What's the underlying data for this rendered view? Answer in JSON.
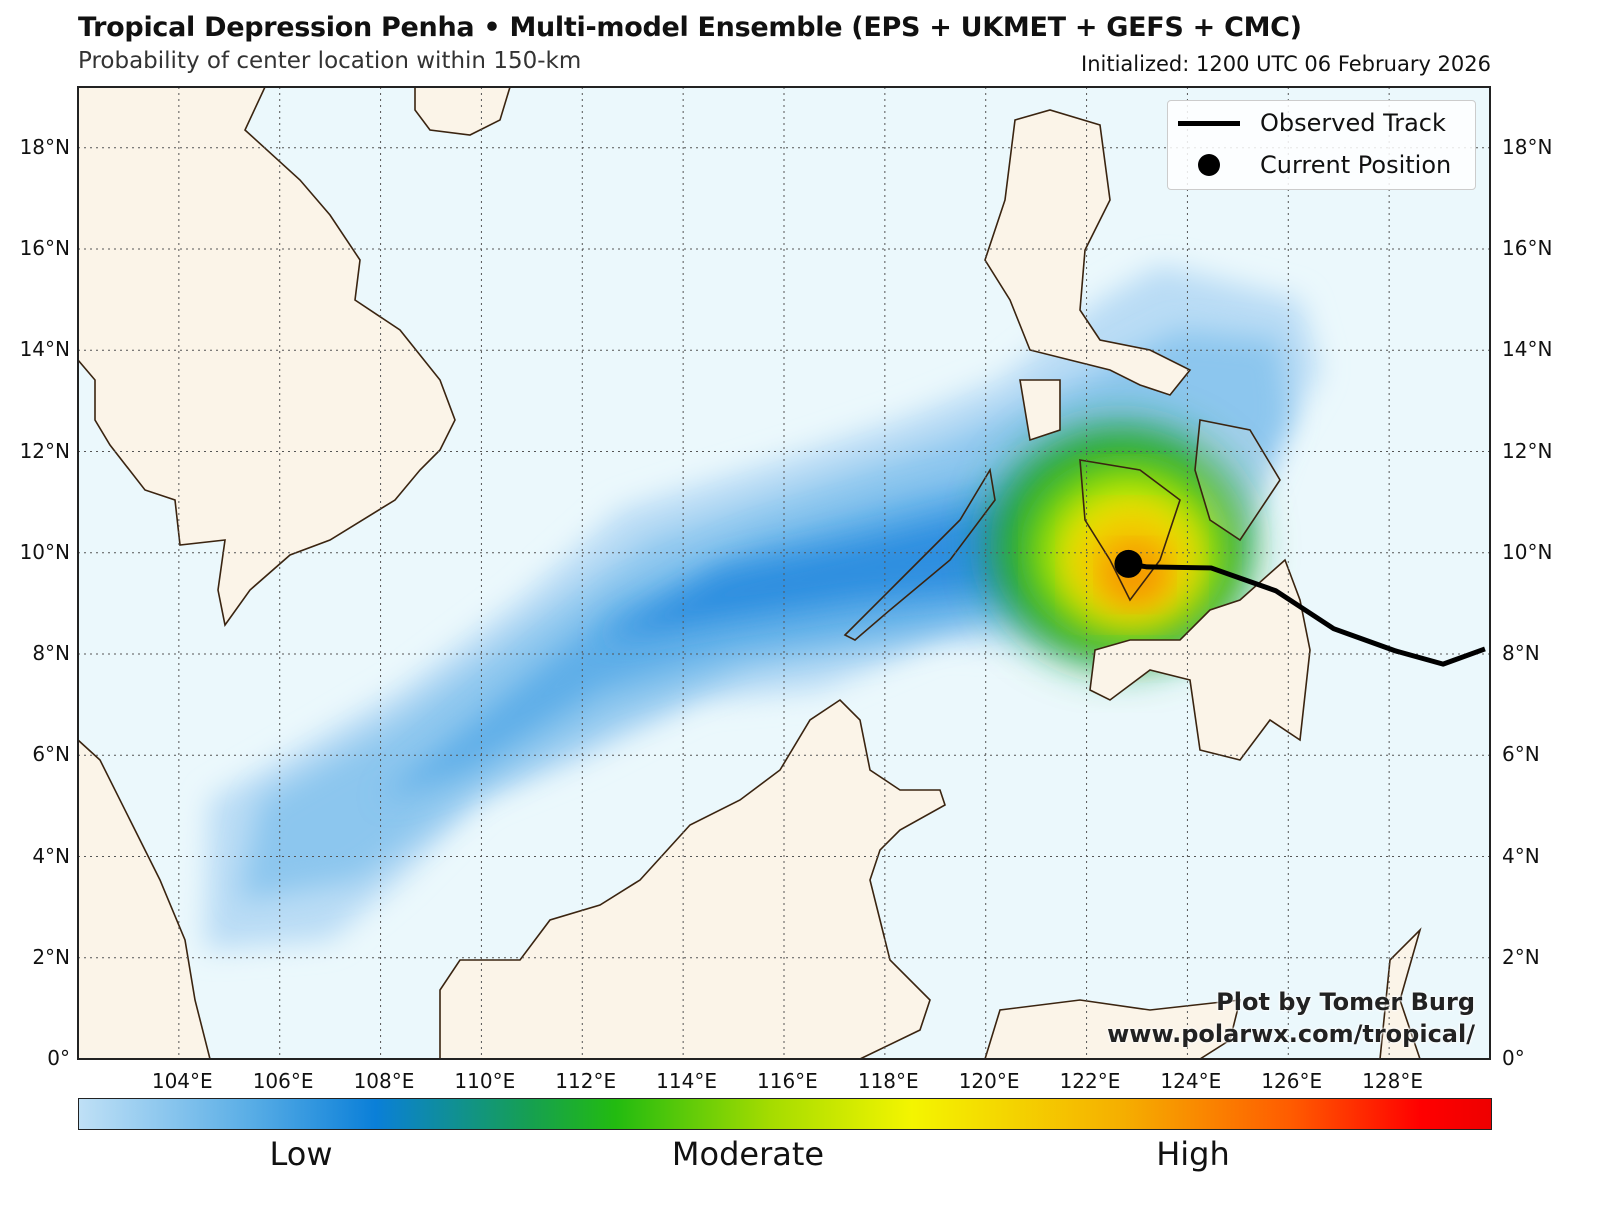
{
  "header": {
    "title": "Tropical Depression Penha • Multi-model Ensemble (EPS + UKMET + GEFS + CMC)",
    "subtitle": "Probability of center location within 150-km",
    "initialized": "Initialized: 1200 UTC 06 February 2026"
  },
  "legend": {
    "track_label": "Observed Track",
    "position_label": "Current Position"
  },
  "credit": {
    "line1": "Plot by Tomer Burg",
    "line2": "www.polarwx.com/tropical/"
  },
  "map": {
    "lon_range": [
      102,
      130
    ],
    "lat_range": [
      0,
      19.2
    ],
    "lon_labels": [
      "104°E",
      "106°E",
      "108°E",
      "110°E",
      "112°E",
      "114°E",
      "116°E",
      "118°E",
      "120°E",
      "122°E",
      "124°E",
      "126°E",
      "128°E"
    ],
    "lon_values": [
      104,
      106,
      108,
      110,
      112,
      114,
      116,
      118,
      120,
      122,
      124,
      126,
      128
    ],
    "lat_labels": [
      "0°",
      "2°N",
      "4°N",
      "6°N",
      "8°N",
      "10°N",
      "12°N",
      "14°N",
      "16°N",
      "18°N"
    ],
    "lat_values": [
      0,
      2,
      4,
      6,
      8,
      10,
      12,
      14,
      16,
      18
    ],
    "ocean_color": "#ebf8fc",
    "land_color": "#fbf4e8",
    "coast_color": "#3a2410"
  },
  "track": {
    "points": [
      [
        122.83,
        9.78
      ],
      [
        123.2,
        9.72
      ],
      [
        124.47,
        9.7
      ],
      [
        125.75,
        9.25
      ],
      [
        126.9,
        8.5
      ],
      [
        128.13,
        8.06
      ],
      [
        129.07,
        7.8
      ],
      [
        129.9,
        8.1
      ]
    ],
    "current_position": [
      122.83,
      9.78
    ]
  },
  "colorbar": {
    "labels": [
      "Low",
      "Moderate",
      "High"
    ]
  }
}
